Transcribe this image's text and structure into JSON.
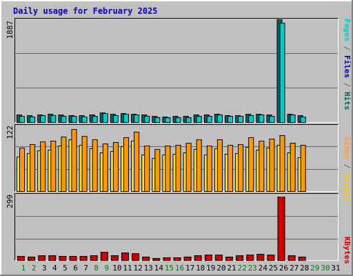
{
  "chart_data": {
    "type": "bar",
    "title": "Daily usage for February 2025",
    "days": [
      "1",
      "2",
      "3",
      "4",
      "5",
      "6",
      "7",
      "8",
      "9",
      "10",
      "11",
      "12",
      "13",
      "14",
      "15",
      "16",
      "17",
      "18",
      "19",
      "20",
      "21",
      "22",
      "23",
      "24",
      "25",
      "26",
      "27",
      "28",
      "29",
      "30",
      "31"
    ],
    "weekend_days": [
      "1",
      "2",
      "8",
      "9",
      "15",
      "16",
      "22",
      "23",
      "29",
      "30"
    ],
    "colors": {
      "title": "#0000cc",
      "weekday": "#000000",
      "weekend": "#007f00",
      "hits": "#006666",
      "files": "#0000aa",
      "pages": "#00cccc",
      "visits": "#ff9900",
      "sites": "#ff9933",
      "kbytes": "#cc0000",
      "separator": "#666666"
    },
    "panels": [
      {
        "ymax_label": "1887",
        "ymax": 1887,
        "legend": [
          "Pages",
          "Files",
          "Hits"
        ],
        "series": [
          {
            "name": "Hits",
            "values": [
              148,
              133,
              154,
              158,
              148,
              140,
              137,
              148,
              192,
              160,
              180,
              169,
              145,
              124,
              117,
              124,
              124,
              148,
              149,
              166,
              141,
              140,
              161,
              166,
              152,
              1887,
              168,
              137,
              0,
              0,
              0
            ]
          },
          {
            "name": "Files",
            "values": [
              130,
              116,
              136,
              140,
              130,
              122,
              118,
              129,
              175,
              141,
              162,
              151,
              127,
              106,
              99,
              106,
              106,
              129,
              130,
              148,
              122,
              122,
              143,
              148,
              132,
              1822,
              150,
              119,
              0,
              0,
              0
            ]
          }
        ]
      },
      {
        "ymax_label": "122",
        "ymax": 122,
        "legend": [
          "Sites",
          "Visits"
        ],
        "series": [
          {
            "name": "Visits",
            "values": [
              81,
              88,
              93,
              94,
              102,
              116,
              103,
              97,
              89,
              92,
              101,
              111,
              85,
              79,
              85,
              87,
              90,
              96,
              85,
              97,
              87,
              88,
              100,
              94,
              98,
              104,
              90,
              86,
              0,
              0,
              0
            ]
          },
          {
            "name": "Sites",
            "values": [
              65,
              71,
              76,
              77,
              85,
              97,
              86,
              80,
              72,
              75,
              84,
              94,
              68,
              62,
              68,
              70,
              73,
              79,
              68,
              80,
              70,
              71,
              83,
              77,
              81,
              87,
              73,
              63,
              0,
              0,
              0
            ]
          }
        ]
      },
      {
        "ymax_label": "299",
        "ymax": 299,
        "legend": [
          "KBytes"
        ],
        "series": [
          {
            "name": "KBytes",
            "values": [
              22,
              20,
              25,
              25,
              23,
              22,
              22,
              25,
              40,
              25,
              36,
              33,
              18,
              14,
              16,
              17,
              18,
              25,
              28,
              27,
              20,
              25,
              28,
              32,
              28,
              290,
              25,
              20,
              0,
              0,
              0
            ]
          }
        ]
      }
    ]
  }
}
